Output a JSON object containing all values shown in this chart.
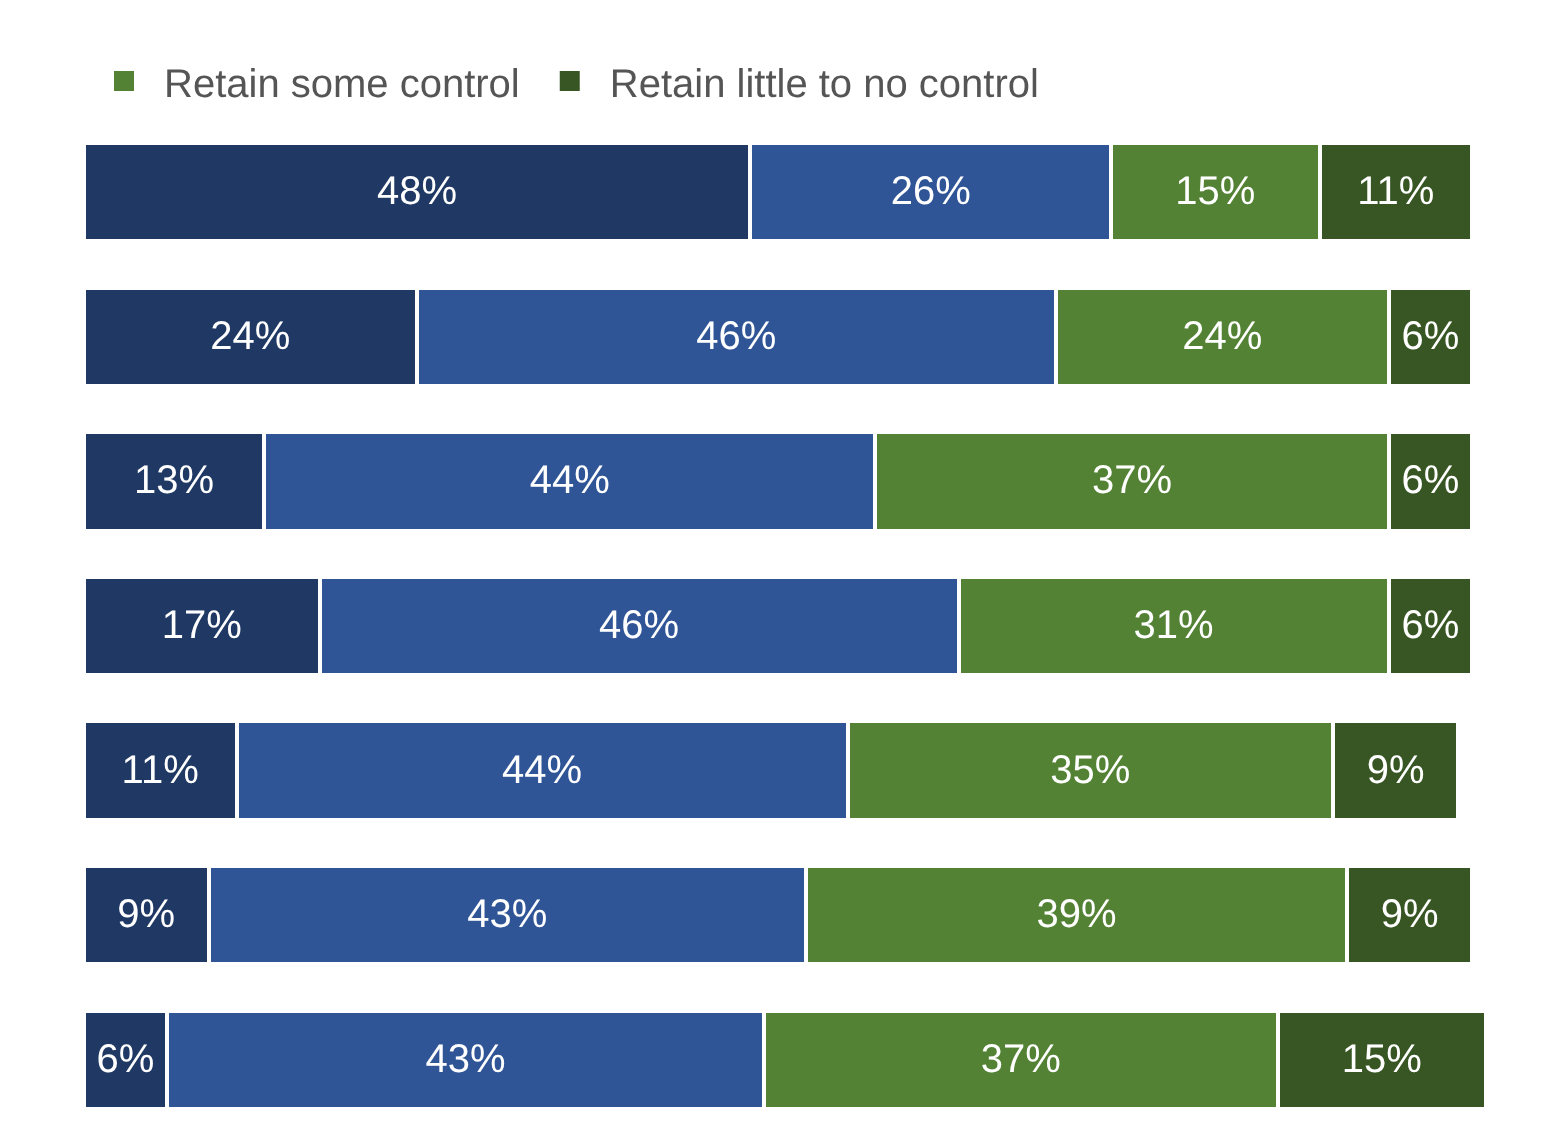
{
  "chart_data": {
    "type": "bar",
    "orientation": "horizontal",
    "stacked": true,
    "categories": [
      null,
      null,
      null,
      null,
      null,
      null,
      null
    ],
    "series": [
      {
        "color": "#1f3864",
        "values": [
          48,
          24,
          13,
          17,
          11,
          9,
          6
        ],
        "value_labels": [
          "48%",
          "24%",
          "13%",
          "17%",
          "11%",
          "9%",
          "6%"
        ]
      },
      {
        "color": "#2f5597",
        "values": [
          26,
          46,
          44,
          46,
          44,
          43,
          43
        ],
        "value_labels": [
          "26%",
          "46%",
          "44%",
          "46%",
          "44%",
          "43%",
          "43%"
        ]
      },
      {
        "name": "Retain some control",
        "color": "#548235",
        "values": [
          15,
          24,
          37,
          31,
          35,
          39,
          37
        ],
        "value_labels": [
          "15%",
          "24%",
          "37%",
          "31%",
          "35%",
          "39%",
          "37%"
        ]
      },
      {
        "name": "Retain little to no control",
        "color": "#375623",
        "values": [
          11,
          6,
          6,
          6,
          9,
          9,
          15
        ],
        "value_labels": [
          "11%",
          "6%",
          "6%",
          "6%",
          "9%",
          "9%",
          "15%"
        ]
      }
    ],
    "tick_labels": false,
    "legend": "top left"
  }
}
